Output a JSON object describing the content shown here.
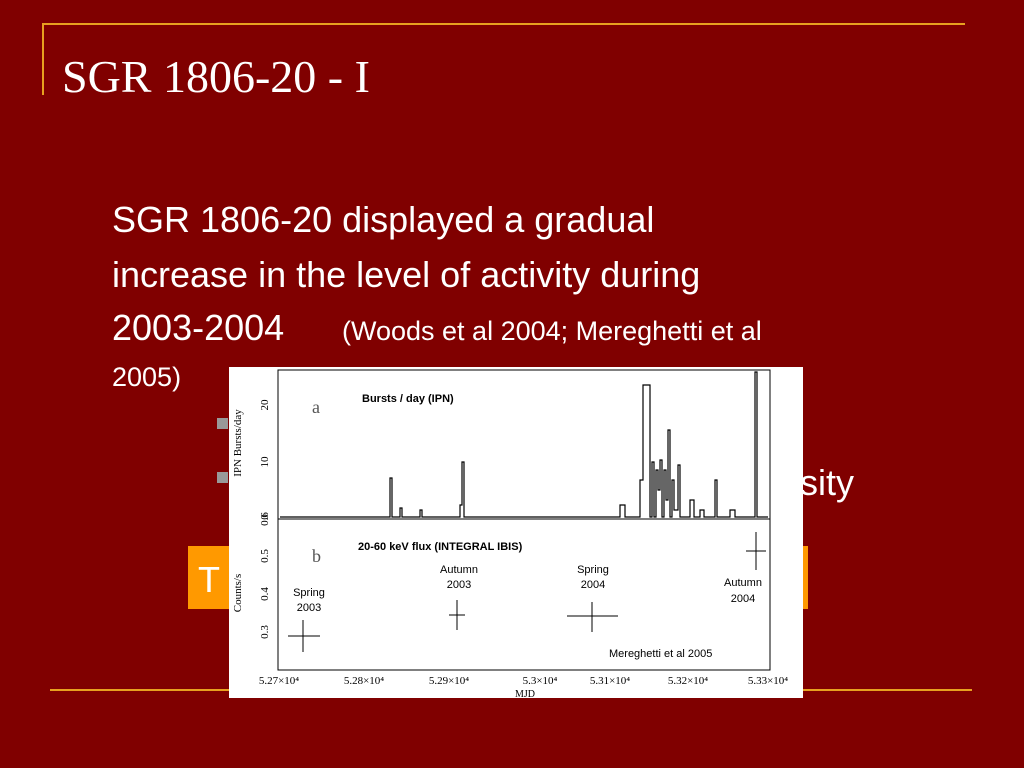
{
  "slide": {
    "title": "SGR 1806-20 - I",
    "body": {
      "lines": [
        "SGR 1806-20 displayed a gradual",
        "increase in the level of activity during",
        "2003-2004"
      ],
      "citation_1": "(Woods et al 2004; Mereghetti et al",
      "citation_2": "2005)"
    },
    "hidden_fragments": {
      "bullet_tail": "sity",
      "box_start": "T"
    },
    "figure": {
      "panel_a": {
        "letter": "a",
        "label": "Bursts / day    (IPN)",
        "y_axis": "IPN Bursts/day",
        "y_ticks": [
          "0",
          "10",
          "20"
        ]
      },
      "panel_b": {
        "letter": "b",
        "label": "20-60 keV flux  (INTEGRAL   IBIS)",
        "y_axis": "Counts/s",
        "y_ticks": [
          "0.3",
          "0.4",
          "0.5",
          "0.6"
        ],
        "annotations": [
          [
            "Spring",
            "2003"
          ],
          [
            "Autumn",
            "2003"
          ],
          [
            "Spring",
            "2004"
          ],
          [
            "Autumn",
            "2004"
          ]
        ],
        "credit": "Mereghetti et al 2005"
      },
      "x_ticks": [
        "5.27×10⁴",
        "5.28×10⁴",
        "5.29×10⁴",
        "5.3×10⁴",
        "5.31×10⁴",
        "5.32×10⁴",
        "5.33×10⁴"
      ],
      "x_axis": "MJD"
    }
  }
}
